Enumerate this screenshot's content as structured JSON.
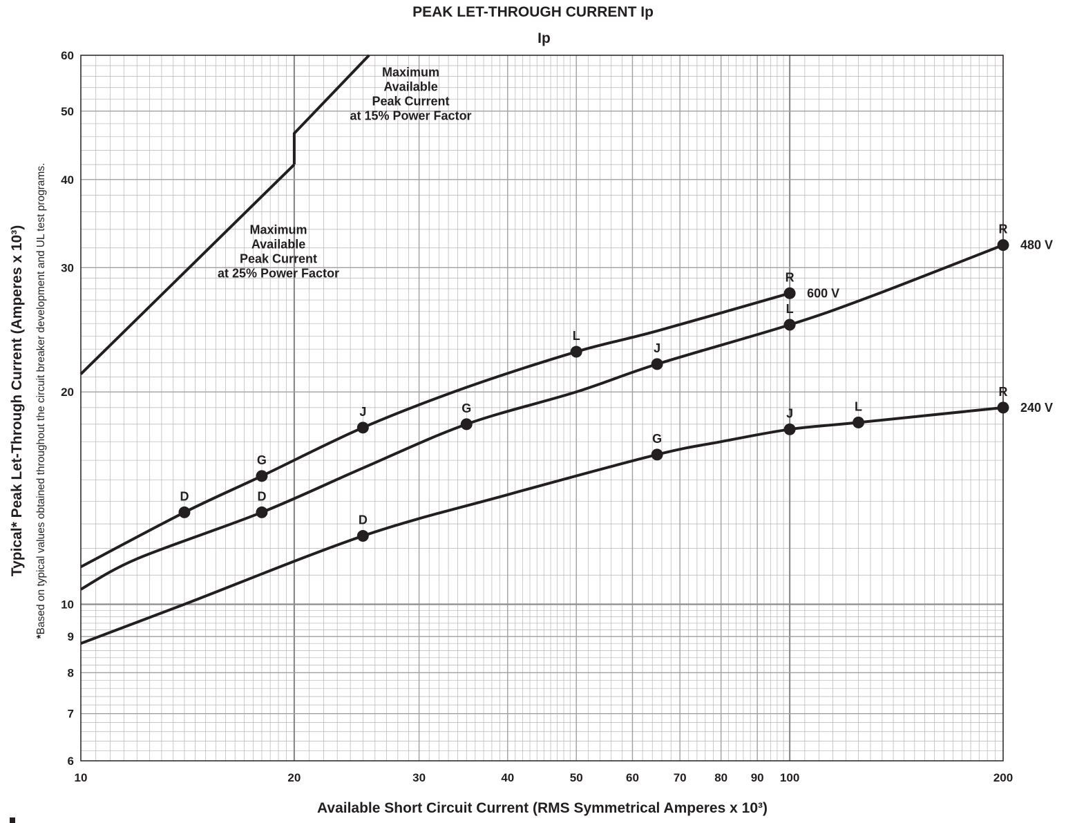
{
  "chart_data": {
    "type": "line",
    "title": "PEAK LET-THROUGH CURRENT Ip",
    "subtitle": "Ip",
    "xlabel": "Available Short Circuit Current (RMS Symmetrical Amperes x 10³)",
    "ylabel": "Typical* Peak Let-Through Current (Amperes x 10³)",
    "footnote_mark": "*",
    "footnote": "Based on typical values obtained throughout the circuit breaker development and UL test programs.",
    "x_scale": "log",
    "y_scale": "log",
    "xlim": [
      10,
      200
    ],
    "ylim": [
      6,
      60
    ],
    "grid": true,
    "x_ticks": [
      {
        "value": 10,
        "label": "10"
      },
      {
        "value": 20,
        "label": "20"
      },
      {
        "value": 30,
        "label": "30"
      },
      {
        "value": 40,
        "label": "40"
      },
      {
        "value": 50,
        "label": "50"
      },
      {
        "value": 60,
        "label": "60"
      },
      {
        "value": 70,
        "label": "70"
      },
      {
        "value": 80,
        "label": "80"
      },
      {
        "value": 90,
        "label": "90"
      },
      {
        "value": 100,
        "label": "100"
      },
      {
        "value": 200,
        "label": "200"
      }
    ],
    "y_ticks": [
      {
        "value": 6,
        "label": "6"
      },
      {
        "value": 7,
        "label": "7"
      },
      {
        "value": 8,
        "label": "8"
      },
      {
        "value": 9,
        "label": "9"
      },
      {
        "value": 10,
        "label": "10"
      },
      {
        "value": 20,
        "label": "20"
      },
      {
        "value": 30,
        "label": "30"
      },
      {
        "value": 40,
        "label": "40"
      },
      {
        "value": 50,
        "label": "50"
      },
      {
        "value": 60,
        "label": "60"
      }
    ],
    "series": [
      {
        "name": "600 V",
        "curve": [
          [
            10,
            11.3
          ],
          [
            14,
            13.5
          ],
          [
            18,
            15.2
          ],
          [
            25,
            17.8
          ],
          [
            35,
            20.3
          ],
          [
            50,
            22.8
          ],
          [
            65,
            24.4
          ],
          [
            100,
            27.6
          ]
        ],
        "markers": [
          {
            "x": 14,
            "y": 13.5,
            "label": "D"
          },
          {
            "x": 18,
            "y": 15.2,
            "label": "G"
          },
          {
            "x": 25,
            "y": 17.8,
            "label": "J"
          },
          {
            "x": 50,
            "y": 22.8,
            "label": "L"
          },
          {
            "x": 100,
            "y": 27.6,
            "label": "R"
          }
        ]
      },
      {
        "name": "480 V",
        "curve": [
          [
            10,
            10.5
          ],
          [
            12,
            11.6
          ],
          [
            18,
            13.5
          ],
          [
            25,
            15.6
          ],
          [
            35,
            18.0
          ],
          [
            50,
            20.0
          ],
          [
            65,
            21.9
          ],
          [
            100,
            24.9
          ],
          [
            130,
            27.3
          ],
          [
            200,
            32.3
          ]
        ],
        "markers": [
          {
            "x": 18,
            "y": 13.5,
            "label": "D"
          },
          {
            "x": 35,
            "y": 18.0,
            "label": "G"
          },
          {
            "x": 65,
            "y": 21.9,
            "label": "J"
          },
          {
            "x": 100,
            "y": 24.9,
            "label": "L"
          },
          {
            "x": 200,
            "y": 32.3,
            "label": "R"
          }
        ]
      },
      {
        "name": "240 V",
        "curve": [
          [
            10,
            8.8
          ],
          [
            14,
            10.0
          ],
          [
            25,
            12.5
          ],
          [
            40,
            14.3
          ],
          [
            65,
            16.3
          ],
          [
            80,
            17.0
          ],
          [
            100,
            17.7
          ],
          [
            125,
            18.1
          ],
          [
            200,
            19.0
          ]
        ],
        "markers": [
          {
            "x": 25,
            "y": 12.5,
            "label": "D"
          },
          {
            "x": 65,
            "y": 16.3,
            "label": "G"
          },
          {
            "x": 100,
            "y": 17.7,
            "label": "J"
          },
          {
            "x": 125,
            "y": 18.1,
            "label": "L"
          },
          {
            "x": 200,
            "y": 19.0,
            "label": "R"
          }
        ]
      },
      {
        "name": "Maximum Available Peak Current at 25% Power Factor",
        "curve": [
          [
            10,
            21.2
          ],
          [
            20,
            42.0
          ]
        ]
      },
      {
        "name": "Maximum Available Peak Current at 15% Power Factor",
        "curve": [
          [
            20,
            42.0
          ],
          [
            20,
            46.5
          ],
          [
            25.5,
            60.0
          ]
        ]
      }
    ],
    "annotations": [
      {
        "lines": [
          "Maximum",
          "Available",
          "Peak Current",
          "at 15% Power Factor"
        ],
        "x": 29.2,
        "y": 56.0
      },
      {
        "lines": [
          "Maximum",
          "Available",
          "Peak Current",
          "at 25% Power Factor"
        ],
        "x": 19.0,
        "y": 33.5
      }
    ],
    "series_labels": [
      {
        "text": "600 V",
        "series": "600 V"
      },
      {
        "text": "480 V",
        "series": "480 V"
      },
      {
        "text": "240 V",
        "series": "240 V"
      }
    ]
  }
}
